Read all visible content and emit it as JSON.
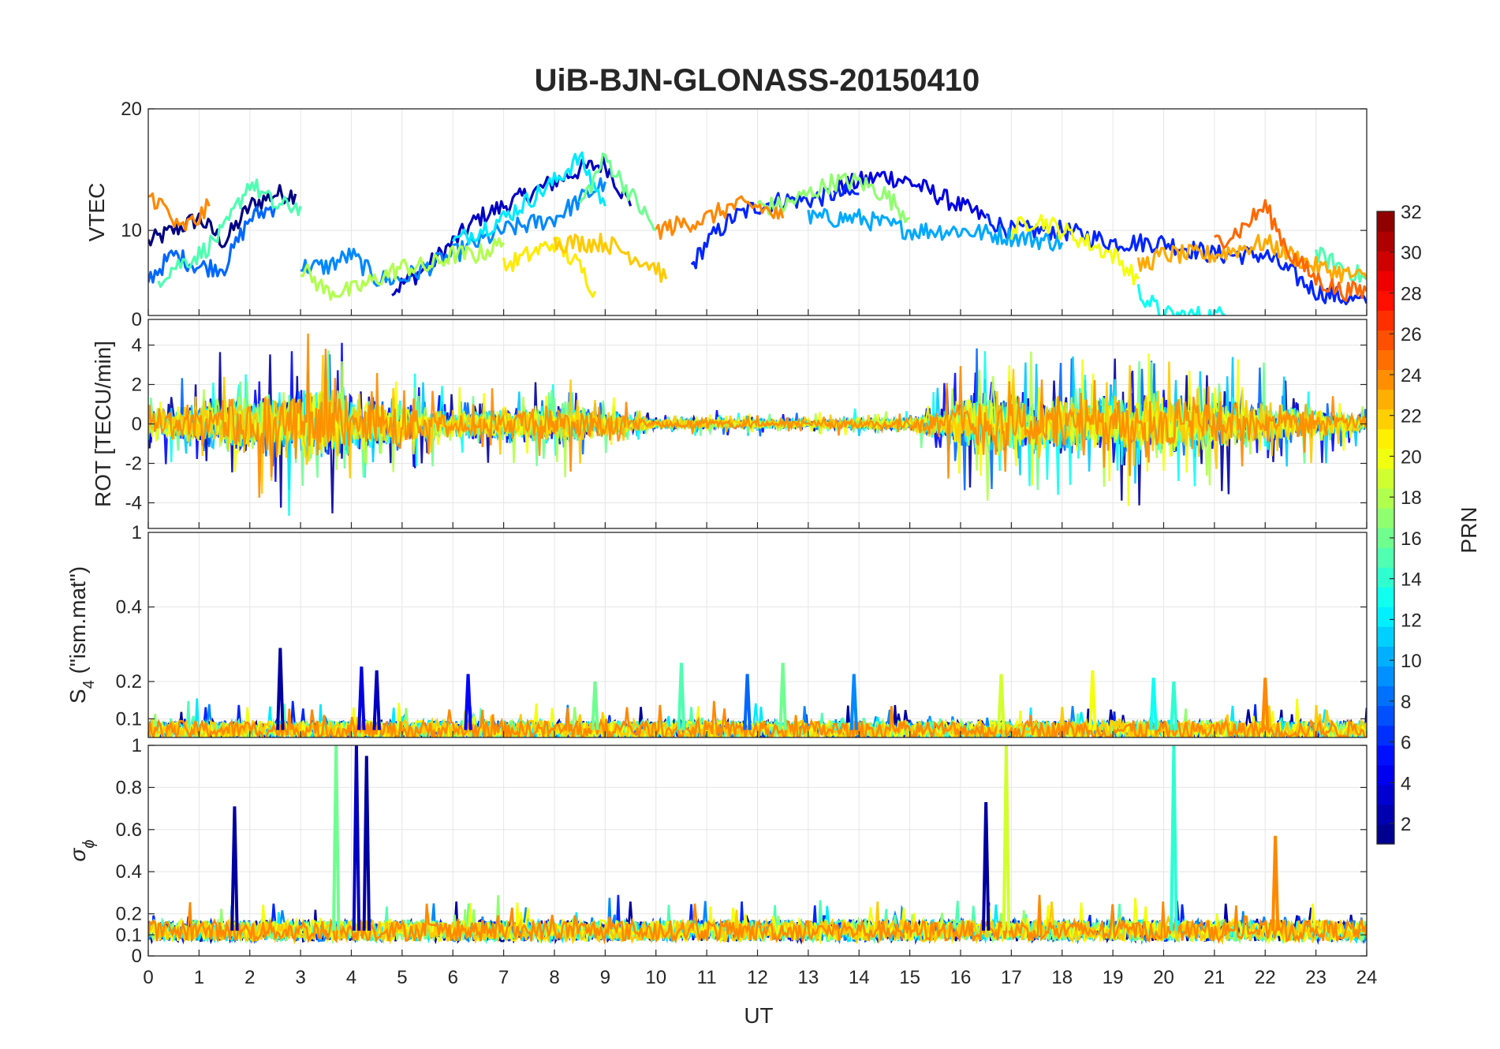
{
  "chart_data": {
    "type": "line",
    "title": "UiB-BJN-GLONASS-20150410",
    "xlabel": "UT",
    "xlim": [
      0,
      24
    ],
    "xticks": [
      0,
      1,
      2,
      3,
      4,
      5,
      6,
      7,
      8,
      9,
      10,
      11,
      12,
      13,
      14,
      15,
      16,
      17,
      18,
      19,
      20,
      21,
      22,
      23,
      24
    ],
    "grid": true,
    "colorbar": {
      "label": "PRN",
      "range": [
        1,
        32
      ],
      "ticks": [
        2,
        4,
        6,
        8,
        10,
        12,
        14,
        16,
        18,
        20,
        22,
        24,
        26,
        28,
        30,
        32
      ],
      "colormap": "jet"
    },
    "panels": [
      {
        "id": "vtec",
        "ylabel": "VTEC",
        "ylim": [
          3,
          20
        ],
        "yticks": [
          10,
          20
        ],
        "series": [
          {
            "prn": 1,
            "x": [
              0,
              0.5,
              1,
              1.5,
              2,
              2.5,
              2.9
            ],
            "y": [
              9,
              10,
              11,
              9,
              12,
              13,
              13
            ]
          },
          {
            "prn": 3,
            "x": [
              4.8,
              5.5,
              6,
              6.5,
              7,
              7.5,
              8,
              8.5,
              9,
              9.5
            ],
            "y": [
              5,
              7,
              9,
              11,
              12,
              13,
              14,
              15,
              15.5,
              12
            ]
          },
          {
            "prn": 4,
            "x": [
              13.5,
              14,
              14.5,
              15,
              15.5,
              16,
              16.5
            ],
            "y": [
              13.5,
              14,
              14.5,
              14,
              13,
              12,
              11
            ]
          },
          {
            "prn": 6,
            "x": [
              10.7,
              11,
              11.5,
              12,
              12.5,
              13,
              13.5,
              14
            ],
            "y": [
              7,
              9,
              11,
              12,
              12.5,
              12.5,
              13,
              13
            ]
          },
          {
            "prn": 6,
            "x": [
              16.5,
              17,
              18,
              19,
              20,
              21,
              22,
              23,
              24
            ],
            "y": [
              11,
              10,
              10,
              9,
              9,
              8,
              8,
              5,
              4
            ]
          },
          {
            "prn": 8,
            "x": [
              0,
              0.5,
              1,
              1.5,
              2,
              2.5
            ],
            "y": [
              6,
              8,
              7,
              7,
              11,
              12
            ]
          },
          {
            "prn": 9,
            "x": [
              3,
              3.5,
              4,
              4.5,
              5,
              6,
              7,
              8,
              9
            ],
            "y": [
              7,
              7,
              8,
              6,
              6,
              8,
              10,
              11,
              14
            ]
          },
          {
            "prn": 10,
            "x": [
              13,
              14,
              15,
              16,
              17,
              18
            ],
            "y": [
              11,
              11,
              10,
              10,
              9.5,
              9
            ]
          },
          {
            "prn": 12,
            "x": [
              6,
              7,
              8,
              8.5,
              9
            ],
            "y": [
              9,
              11,
              14,
              16,
              12
            ]
          },
          {
            "prn": 13,
            "x": [
              19.5,
              20,
              20.5,
              21,
              21.2
            ],
            "y": [
              5,
              3,
              3,
              3,
              3
            ]
          },
          {
            "prn": 15,
            "x": [
              0.2,
              0.5,
              1,
              1.5,
              2,
              2.5,
              3
            ],
            "y": [
              6,
              7,
              8,
              10,
              14,
              12,
              12
            ]
          },
          {
            "prn": 15,
            "x": [
              23,
              23.5,
              24
            ],
            "y": [
              8,
              7,
              6
            ]
          },
          {
            "prn": 16,
            "x": [
              8.5,
              9,
              9.5,
              10
            ],
            "y": [
              12,
              16,
              13,
              10
            ]
          },
          {
            "prn": 17,
            "x": [
              12,
              12.5,
              13,
              13.5,
              14,
              14.5,
              15
            ],
            "y": [
              12,
              12,
              13,
              14,
              14,
              13,
              11
            ]
          },
          {
            "prn": 18,
            "x": [
              3,
              3.5,
              4,
              4.5,
              5,
              5.5,
              6,
              6.5,
              7
            ],
            "y": [
              7,
              5,
              5,
              6,
              7,
              7,
              8,
              8,
              9
            ]
          },
          {
            "prn": 20,
            "x": [
              17,
              17.5,
              18,
              18.5,
              19,
              19.5
            ],
            "y": [
              10,
              11,
              10,
              9,
              8,
              6
            ]
          },
          {
            "prn": 21,
            "x": [
              7,
              7.5,
              8,
              8.5,
              8.8
            ],
            "y": [
              7,
              8,
              9,
              7,
              5
            ]
          },
          {
            "prn": 22,
            "x": [
              8,
              9,
              9.5,
              10,
              10.2
            ],
            "y": [
              9,
              9,
              8,
              7,
              6
            ]
          },
          {
            "prn": 23,
            "x": [
              19.5,
              20,
              21,
              22,
              23,
              24
            ],
            "y": [
              7,
              8,
              8,
              9,
              7,
              6
            ]
          },
          {
            "prn": 24,
            "x": [
              0,
              0.3,
              0.6,
              1,
              1.2
            ],
            "y": [
              13,
              12,
              10,
              11,
              12
            ]
          },
          {
            "prn": 24,
            "x": [
              10,
              11,
              11.5,
              12,
              12.5
            ],
            "y": [
              10,
              11,
              12,
              12,
              11
            ]
          },
          {
            "prn": 25,
            "x": [
              21,
              21.5,
              22,
              22.5,
              23,
              23.5,
              24
            ],
            "y": [
              9,
              10,
              12,
              8,
              6,
              5,
              5
            ]
          }
        ]
      },
      {
        "id": "rot",
        "ylabel": "ROT [TECU/min]",
        "ylim": [
          -5.3,
          5.3
        ],
        "yticks": [
          -4,
          -2,
          0,
          2,
          4
        ],
        "extra_tick_label": "0",
        "activity_profile": [
          {
            "x": 0,
            "amp": 1.5
          },
          {
            "x": 1.5,
            "amp": 3.5
          },
          {
            "x": 3.5,
            "amp": 4.5
          },
          {
            "x": 4.5,
            "amp": 3
          },
          {
            "x": 6,
            "amp": 1.5
          },
          {
            "x": 8,
            "amp": 2.5
          },
          {
            "x": 10,
            "amp": 0.6
          },
          {
            "x": 13,
            "amp": 0.5
          },
          {
            "x": 15,
            "amp": 0.8
          },
          {
            "x": 16.5,
            "amp": 4
          },
          {
            "x": 18.5,
            "amp": 3
          },
          {
            "x": 20,
            "amp": 4
          },
          {
            "x": 21.5,
            "amp": 3
          },
          {
            "x": 24,
            "amp": 1
          }
        ]
      },
      {
        "id": "s4",
        "ylabel": "S",
        "ylabel_sub": "4",
        "ylabel_suffix": " (\"ism.mat\")",
        "ylim": [
          0.05,
          0.6
        ],
        "yticks": [
          0.1,
          0.2,
          0.4
        ],
        "extra_tick_label": "1",
        "spikes": [
          {
            "x": 2.6,
            "y": 0.29,
            "prn": 2
          },
          {
            "x": 4.2,
            "y": 0.24,
            "prn": 4
          },
          {
            "x": 4.5,
            "y": 0.23,
            "prn": 3
          },
          {
            "x": 6.3,
            "y": 0.22,
            "prn": 5
          },
          {
            "x": 8.8,
            "y": 0.2,
            "prn": 16
          },
          {
            "x": 10.5,
            "y": 0.25,
            "prn": 15
          },
          {
            "x": 11.8,
            "y": 0.22,
            "prn": 8
          },
          {
            "x": 12.5,
            "y": 0.25,
            "prn": 16
          },
          {
            "x": 13.9,
            "y": 0.22,
            "prn": 9
          },
          {
            "x": 16.8,
            "y": 0.22,
            "prn": 19
          },
          {
            "x": 18.6,
            "y": 0.23,
            "prn": 20
          },
          {
            "x": 19.8,
            "y": 0.21,
            "prn": 13
          },
          {
            "x": 20.2,
            "y": 0.2,
            "prn": 14
          },
          {
            "x": 22,
            "y": 0.21,
            "prn": 24
          }
        ]
      },
      {
        "id": "sigma_phi",
        "ylabel": "σ",
        "ylabel_sub": "ϕ",
        "ylim": [
          0,
          1
        ],
        "yticks": [
          0,
          0.1,
          0.2,
          0.4,
          0.6,
          0.8,
          1
        ],
        "spikes": [
          {
            "x": 1.7,
            "y": 0.71,
            "prn": 2
          },
          {
            "x": 3.7,
            "y": 1.0,
            "prn": 16
          },
          {
            "x": 4.1,
            "y": 1.0,
            "prn": 3
          },
          {
            "x": 4.3,
            "y": 0.95,
            "prn": 2
          },
          {
            "x": 16.5,
            "y": 0.73,
            "prn": 2
          },
          {
            "x": 16.9,
            "y": 1.0,
            "prn": 19
          },
          {
            "x": 20.2,
            "y": 1.0,
            "prn": 14
          },
          {
            "x": 22.2,
            "y": 0.57,
            "prn": 24
          }
        ]
      }
    ]
  }
}
